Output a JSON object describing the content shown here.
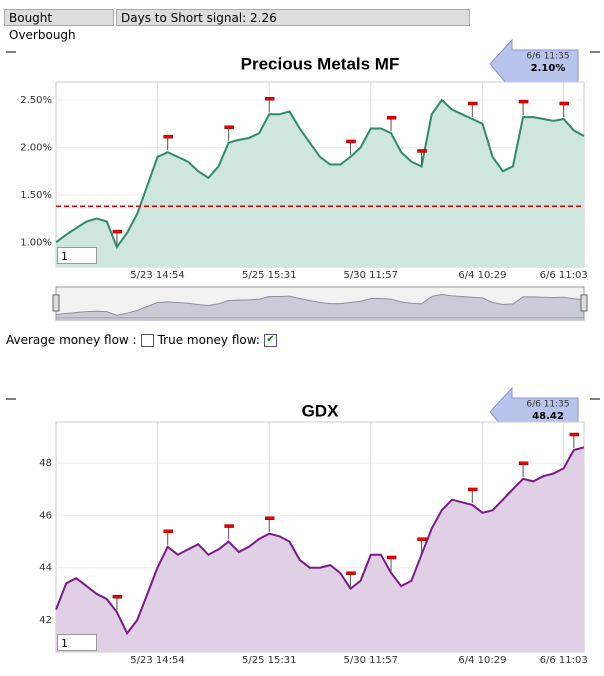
{
  "toolbar": {
    "button": "Bought Overbough",
    "status": "Days to Short signal: 2.26"
  },
  "options": {
    "average_label": "Average money flow :",
    "average_checked": false,
    "true_label": "True money flow:",
    "true_checked": true
  },
  "chart_data": [
    {
      "type": "area",
      "title": "Precious Metals MF",
      "color": "#2e8b68",
      "fill": "#cfe6de",
      "callout": {
        "time": "6/6 11:35",
        "value": "2.10%"
      },
      "zoom": "1",
      "categories": [
        null,
        null,
        null,
        null,
        null,
        null,
        null,
        null,
        null,
        null,
        "5/23 14:54",
        null,
        null,
        null,
        null,
        null,
        null,
        null,
        null,
        null,
        null,
        "5/25 15:31",
        null,
        null,
        null,
        null,
        null,
        null,
        null,
        null,
        null,
        "5/30 11:57",
        null,
        null,
        null,
        null,
        null,
        null,
        null,
        null,
        null,
        null,
        "6/4 10:29",
        null,
        null,
        null,
        null,
        null,
        null,
        null,
        "6/6 11:03",
        null,
        null
      ],
      "values": [
        1.0,
        1.08,
        1.15,
        1.22,
        1.25,
        1.22,
        0.95,
        1.1,
        1.3,
        1.6,
        1.9,
        1.95,
        1.9,
        1.85,
        1.75,
        1.68,
        1.8,
        2.05,
        2.08,
        2.1,
        2.15,
        2.35,
        2.35,
        2.38,
        2.2,
        2.05,
        1.9,
        1.82,
        1.82,
        1.9,
        2.0,
        2.2,
        2.2,
        2.15,
        1.95,
        1.85,
        1.8,
        2.35,
        2.5,
        2.4,
        2.35,
        2.3,
        2.25,
        1.9,
        1.75,
        1.8,
        2.32,
        2.32,
        2.3,
        2.28,
        2.3,
        2.18,
        2.12
      ],
      "signals": [
        6,
        11,
        17,
        21,
        29,
        33,
        36,
        41,
        46,
        50
      ],
      "threshold": 1.38,
      "threshold_color": "#e00000",
      "ylim": [
        0.74,
        2.69
      ],
      "yticks": [
        {
          "value": 1.0,
          "label": "1.00%"
        },
        {
          "value": 1.5,
          "label": "1.50%"
        },
        {
          "value": 2.0,
          "label": "2.00%"
        },
        {
          "value": 2.5,
          "label": "2.50%"
        }
      ],
      "grid": true,
      "navigator": true
    },
    {
      "type": "area",
      "title": "GDX",
      "color": "#7a1a87",
      "fill": "#e0d0e6",
      "callout": {
        "time": "6/6 11:35",
        "value": "48.42"
      },
      "zoom": "1",
      "categories": [
        null,
        null,
        null,
        null,
        null,
        null,
        null,
        null,
        null,
        null,
        "5/23 14:54",
        null,
        null,
        null,
        null,
        null,
        null,
        null,
        null,
        null,
        null,
        "5/25 15:31",
        null,
        null,
        null,
        null,
        null,
        null,
        null,
        null,
        null,
        "5/30 11:57",
        null,
        null,
        null,
        null,
        null,
        null,
        null,
        null,
        null,
        null,
        "6/4 10:29",
        null,
        null,
        null,
        null,
        null,
        null,
        null,
        "6/6 11:03",
        null,
        null
      ],
      "values": [
        42.4,
        43.4,
        43.6,
        43.3,
        43.0,
        42.8,
        42.3,
        41.5,
        42.0,
        43.0,
        44.0,
        44.8,
        44.5,
        44.7,
        44.9,
        44.5,
        44.7,
        45.0,
        44.6,
        44.8,
        45.1,
        45.3,
        45.2,
        45.0,
        44.3,
        44.0,
        44.0,
        44.1,
        43.8,
        43.2,
        43.5,
        44.5,
        44.5,
        43.8,
        43.3,
        43.5,
        44.5,
        45.5,
        46.2,
        46.6,
        46.5,
        46.4,
        46.1,
        46.2,
        46.6,
        47.0,
        47.4,
        47.3,
        47.5,
        47.6,
        47.8,
        48.5,
        48.6
      ],
      "signals": [
        6,
        11,
        17,
        21,
        29,
        33,
        36,
        41,
        46,
        51
      ],
      "ylim": [
        40.78,
        49.57
      ],
      "yticks": [
        42,
        44,
        46,
        48
      ],
      "grid": true,
      "navigator": false
    }
  ]
}
